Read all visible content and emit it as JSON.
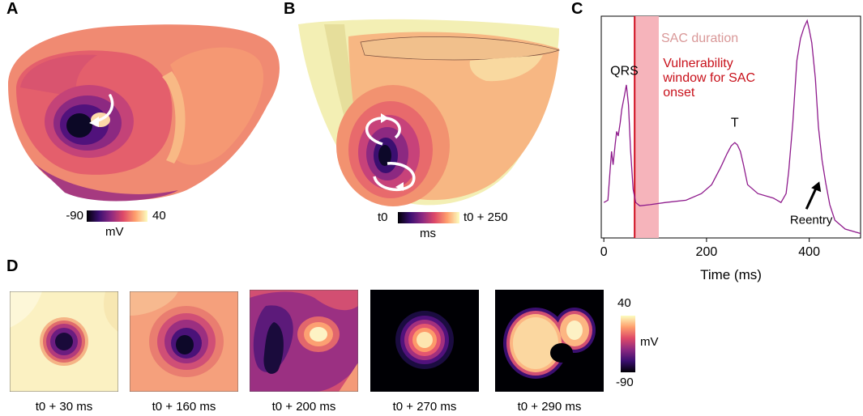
{
  "panels": {
    "a": {
      "label": "A",
      "colorbar": {
        "min_label": "-90",
        "max_label": "40",
        "unit": "mV"
      }
    },
    "b": {
      "label": "B",
      "colorbar": {
        "min_label": "t0",
        "max_label": "t0 + 250",
        "unit": "ms"
      }
    },
    "c": {
      "label": "C"
    },
    "d": {
      "label": "D",
      "frames": [
        {
          "caption": "t0 + 30 ms"
        },
        {
          "caption": "t0 + 160 ms"
        },
        {
          "caption": "t0 + 200 ms"
        },
        {
          "caption": "t0 + 270 ms"
        },
        {
          "caption": "t0 + 290 ms"
        }
      ],
      "colorbar": {
        "max_label": "40",
        "min_label": "-90",
        "unit": "mV"
      }
    }
  },
  "chart_data": {
    "type": "line",
    "title": "",
    "xlabel": "Time (ms)",
    "ylabel": "",
    "xlim": [
      -5,
      500
    ],
    "ylim": [
      0,
      1
    ],
    "xticks": [
      0,
      200,
      400
    ],
    "x": [
      0,
      8,
      12,
      15,
      18,
      22,
      25,
      28,
      32,
      35,
      40,
      44,
      48,
      52,
      57,
      62,
      70,
      90,
      120,
      160,
      190,
      210,
      228,
      240,
      248,
      255,
      260,
      266,
      272,
      280,
      300,
      330,
      345,
      355,
      360,
      368,
      376,
      383,
      390,
      396,
      400,
      405,
      412,
      418,
      425,
      432,
      440,
      450,
      470,
      500
    ],
    "y": [
      0.16,
      0.17,
      0.3,
      0.39,
      0.33,
      0.42,
      0.48,
      0.46,
      0.52,
      0.58,
      0.64,
      0.69,
      0.6,
      0.4,
      0.22,
      0.16,
      0.145,
      0.15,
      0.16,
      0.17,
      0.2,
      0.24,
      0.32,
      0.38,
      0.415,
      0.43,
      0.42,
      0.39,
      0.33,
      0.24,
      0.2,
      0.18,
      0.16,
      0.2,
      0.3,
      0.52,
      0.8,
      0.9,
      0.95,
      0.98,
      0.94,
      0.88,
      0.72,
      0.5,
      0.35,
      0.25,
      0.15,
      0.08,
      0.04,
      0.02
    ],
    "vertical_line": {
      "x": 60,
      "color": "#d01020"
    },
    "shaded_region": {
      "x_start": 60,
      "x_end": 107,
      "label": "SAC duration",
      "color": "#f6b4bb"
    },
    "annotations": [
      {
        "text": "QRS",
        "x": 40,
        "y": 0.75
      },
      {
        "text": "T",
        "x": 255,
        "y": 0.48
      },
      {
        "text": "Reentry",
        "x": 404,
        "y": 0.05
      },
      {
        "text": "Vulnerability window for SAC onset",
        "x": 120,
        "y": 0.78,
        "color": "#c8101a"
      }
    ],
    "line_color": "#8e1a8c"
  }
}
